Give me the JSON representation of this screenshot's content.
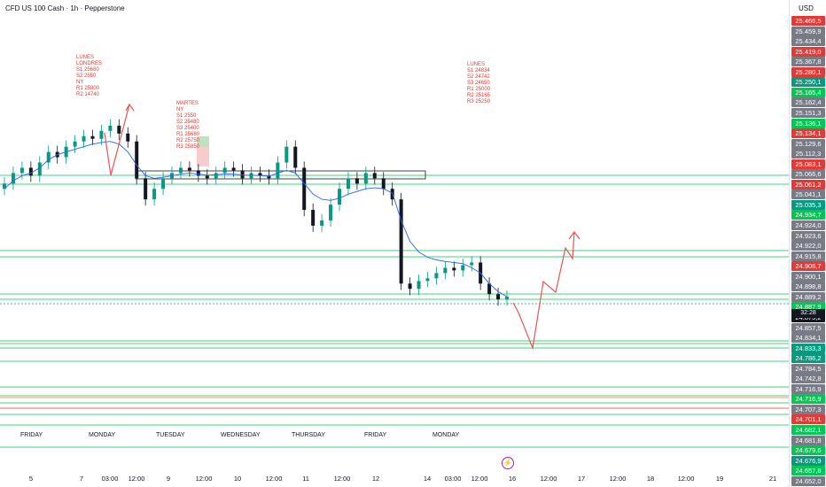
{
  "header": {
    "title": "CFD US 100 Cash · 1h · Pepperstone"
  },
  "price_axis": {
    "currency": "USD",
    "last_time_label": "32:28",
    "labels": [
      {
        "text": "25.466,5",
        "color": "#e53935"
      },
      {
        "text": "25.459,9",
        "color": "#787b86"
      },
      {
        "text": "25.434,4",
        "color": "#787b86"
      },
      {
        "text": "25.419,0",
        "color": "#e53935"
      },
      {
        "text": "25.367,8",
        "color": "#787b86"
      },
      {
        "text": "25.280,1",
        "color": "#e53935"
      },
      {
        "text": "25.250,1",
        "color": "#089981"
      },
      {
        "text": "25.165,4",
        "color": "#00c853"
      },
      {
        "text": "25.162,4",
        "color": "#787b86"
      },
      {
        "text": "25.151,3",
        "color": "#787b86"
      },
      {
        "text": "25.136,1",
        "color": "#00c853"
      },
      {
        "text": "25.134,1",
        "color": "#e53935"
      },
      {
        "text": "25.129,6",
        "color": "#787b86"
      },
      {
        "text": "25.112,3",
        "color": "#787b86"
      },
      {
        "text": "25.083,1",
        "color": "#e53935"
      },
      {
        "text": "25.066,6",
        "color": "#787b86"
      },
      {
        "text": "25.061,2",
        "color": "#e53935"
      },
      {
        "text": "25.041,1",
        "color": "#787b86"
      },
      {
        "text": "25.035,3",
        "color": "#089981"
      },
      {
        "text": "24.934,7",
        "color": "#00c853"
      },
      {
        "text": "24.924,0",
        "color": "#787b86"
      },
      {
        "text": "24.923,6",
        "color": "#787b86"
      },
      {
        "text": "24.922,0",
        "color": "#787b86"
      },
      {
        "text": "24.915,8",
        "color": "#787b86"
      },
      {
        "text": "24.906,7",
        "color": "#e53935"
      },
      {
        "text": "24.900,1",
        "color": "#787b86"
      },
      {
        "text": "24.898,8",
        "color": "#787b86"
      },
      {
        "text": "24.889,2",
        "color": "#787b86"
      },
      {
        "text": "24.887,9",
        "color": "#00c853"
      },
      {
        "text": "24.875,2",
        "color": "#131722"
      },
      {
        "text": "24.857,5",
        "color": "#787b86"
      },
      {
        "text": "24.834,1",
        "color": "#787b86"
      },
      {
        "text": "24.833,3",
        "color": "#089981"
      },
      {
        "text": "24.786,2",
        "color": "#089981"
      },
      {
        "text": "24.784,5",
        "color": "#787b86"
      },
      {
        "text": "24.742,8",
        "color": "#787b86"
      },
      {
        "text": "24.716,9",
        "color": "#787b86"
      },
      {
        "text": "24.716,9",
        "color": "#00c853"
      },
      {
        "text": "24.707,3",
        "color": "#787b86"
      },
      {
        "text": "24.701,1",
        "color": "#e53935"
      },
      {
        "text": "24.682,1",
        "color": "#00c853"
      },
      {
        "text": "24.681,8",
        "color": "#787b86"
      },
      {
        "text": "24.679,6",
        "color": "#00c853"
      },
      {
        "text": "24.676,9",
        "color": "#089981"
      },
      {
        "text": "24.657,8",
        "color": "#00c853"
      },
      {
        "text": "24.652,0",
        "color": "#787b86"
      }
    ]
  },
  "day_labels": [
    "FRIDAY",
    "MONDAY",
    "TUESDAY",
    "WEDNESDAY",
    "THURSDAY",
    "FRIDAY",
    "MONDAY"
  ],
  "time_ticks": [
    "5",
    "7",
    "03:00",
    "12:00",
    "9",
    "12:00",
    "10",
    "12:00",
    "11",
    "12:00",
    "12",
    "14",
    "03:00",
    "12:00",
    "16",
    "12:00",
    "17",
    "12:00",
    "18",
    "12:00",
    "19",
    "21"
  ],
  "annotations": {
    "monday_note": "LUNES\nLONDRES\nS1 25680\nS2 2550\nNY\nR1 25800\nR2 14740",
    "tuesday_note": "MARTES\nNY\nS1 2550\nS2 25480\nS3 25400\nR1 25680\nR2 25750\nR3 25850",
    "monday2_note": "LUNES\nS1 24834\nS2 24742\nS3 24650\nR1 25000\nR2 25165\nR3 25250"
  },
  "chart_data": {
    "type": "candlestick",
    "title": "CFD US 100 Cash · 1h · Pepperstone",
    "currency": "USD",
    "last_price": 24875.2,
    "series": [
      {
        "name": "price",
        "values": [
          25090,
          25110,
          25120,
          25105,
          25130,
          25150,
          25140,
          25160,
          25170,
          25180,
          25175,
          25190,
          25200,
          25185,
          25170,
          25100,
          25060,
          25080,
          25100,
          25110,
          25120,
          25115,
          25105,
          25100,
          25110,
          25120,
          25115,
          25100,
          25110,
          25105,
          25100,
          25130,
          25160,
          25120,
          25040,
          25010,
          25020,
          25050,
          25080,
          25100,
          25090,
          25110,
          25100,
          25080,
          25060,
          24900,
          24890,
          24905,
          24910,
          24920,
          24930,
          24925,
          24935,
          24940,
          24900,
          24880,
          24870,
          24875
        ]
      },
      {
        "name": "ma",
        "values": [
          25080,
          25095,
          25105,
          25110,
          25120,
          25135,
          25145,
          25150,
          25155,
          25160,
          25165,
          25168,
          25170,
          25165,
          25150,
          25125,
          25105,
          25100,
          25102,
          25105,
          25108,
          25110,
          25108,
          25106,
          25107,
          25108,
          25108,
          25106,
          25106,
          25105,
          25104,
          25110,
          25115,
          25110,
          25090,
          25070,
          25060,
          25058,
          25062,
          25070,
          25075,
          25080,
          25082,
          25080,
          25072,
          25020,
          24980,
          24960,
          24950,
          24945,
          24942,
          24940,
          24938,
          24930,
          24920,
          24900,
          24885,
          24875
        ]
      }
    ],
    "legend_position": "none",
    "grid": false
  }
}
